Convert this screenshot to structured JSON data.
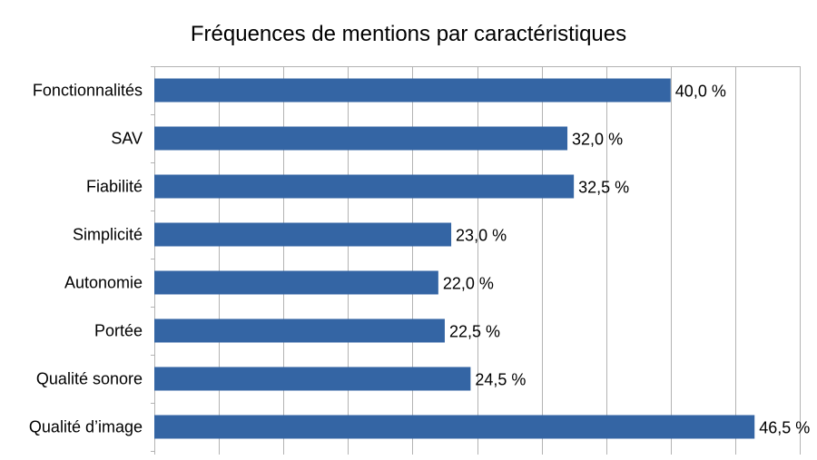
{
  "chart_data": {
    "type": "bar",
    "orientation": "horizontal",
    "title": "Fréquences de mentions par caractéristiques",
    "xlabel": "",
    "ylabel": "",
    "xlim": [
      0,
      0.5
    ],
    "grid": true,
    "legend": "none",
    "bar_color": "#3465a4",
    "categories": [
      "Fonctionnalités",
      "SAV",
      "Fiabilité",
      "Simplicité ",
      "Autonomie",
      "Portée",
      "Qualité sonore",
      "Qualité d’image"
    ],
    "values": [
      0.4,
      0.32,
      0.325,
      0.23,
      0.22,
      0.225,
      0.245,
      0.465
    ],
    "value_labels": [
      "40,0 %",
      "32,0 %",
      "32,5 %",
      "23,0 %",
      "22,0 %",
      "22,5 %",
      "24,5 %",
      "46,5 %"
    ]
  }
}
